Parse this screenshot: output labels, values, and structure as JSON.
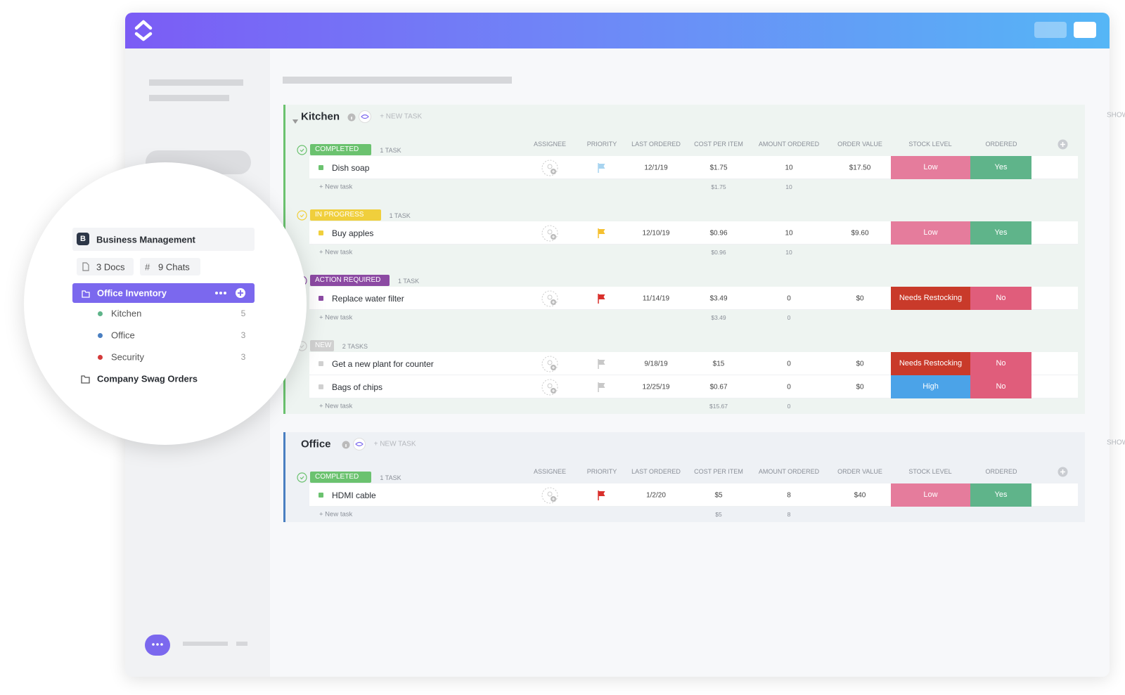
{
  "sidebar": {
    "workspace_initial": "B",
    "workspace": "Business Management",
    "docs": "3 Docs",
    "chats_icon": "#",
    "chats": "9 Chats",
    "folder": {
      "name": "Office Inventory",
      "lists": [
        {
          "name": "Kitchen",
          "count": 5,
          "color": "#5fb48a"
        },
        {
          "name": "Office",
          "count": 3,
          "color": "#4a7fc1"
        },
        {
          "name": "Security",
          "count": 3,
          "color": "#d43a3a"
        }
      ]
    },
    "other_folder": "Company Swag Orders"
  },
  "main": {
    "groups": [
      {
        "name": "Kitchen",
        "accent": "#6bc26f",
        "background": "#eef4f1",
        "new_task": "+ NEW TASK",
        "show_closed": "SHOW CLOSED",
        "columns": [
          "ASSIGNEE",
          "PRIORITY",
          "LAST ORDERED",
          "COST PER ITEM",
          "AMOUNT ORDERED",
          "ORDER VALUE",
          "STOCK LEVEL",
          "ORDERED"
        ],
        "statuses": [
          {
            "label": "COMPLETED",
            "color": "#6bc26f",
            "count": "1 TASK",
            "new_task": "+ New task",
            "total_cost": "$1.75",
            "total_amount": 10,
            "tasks": [
              {
                "name": "Dish soap",
                "priority_color": "#a8d4f0",
                "last_ordered": "12/1/19",
                "cost": "$1.75",
                "amount": 10,
                "order_value": "$17.50",
                "stock": "Low",
                "stock_color": "#e57c9c",
                "ordered": "Yes",
                "ordered_color": "#5fb48a"
              }
            ]
          },
          {
            "label": "IN PROGRESS",
            "color": "#f0cf3c",
            "count": "1 TASK",
            "new_task": "+ New task",
            "total_cost": "$0.96",
            "total_amount": 10,
            "tasks": [
              {
                "name": "Buy apples",
                "priority_color": "#f5c030",
                "last_ordered": "12/10/19",
                "cost": "$0.96",
                "amount": 10,
                "order_value": "$9.60",
                "stock": "Low",
                "stock_color": "#e57c9c",
                "ordered": "Yes",
                "ordered_color": "#5fb48a"
              }
            ]
          },
          {
            "label": "ACTION REQUIRED",
            "color": "#8c4aa3",
            "count": "1 TASK",
            "new_task": "+ New task",
            "total_cost": "$3.49",
            "total_amount": 0,
            "tasks": [
              {
                "name": "Replace water filter",
                "priority_color": "#d9302c",
                "last_ordered": "11/14/19",
                "cost": "$3.49",
                "amount": 0,
                "order_value": "$0",
                "stock": "Needs Restocking",
                "stock_color": "#c93a2a",
                "ordered": "No",
                "ordered_color": "#e05d7b"
              }
            ]
          },
          {
            "label": "NEW",
            "color": "#d0d0d0",
            "count": "2 TASKS",
            "new_task": "+ New task",
            "total_cost": "$15.67",
            "total_amount": 0,
            "tasks": [
              {
                "name": "Get a new plant for counter",
                "priority_color": "#c8c8c8",
                "last_ordered": "9/18/19",
                "cost": "$15",
                "amount": 0,
                "order_value": "$0",
                "stock": "Needs Restocking",
                "stock_color": "#c93a2a",
                "ordered": "No",
                "ordered_color": "#e05d7b"
              },
              {
                "name": "Bags of chips",
                "priority_color": "#c8c8c8",
                "last_ordered": "12/25/19",
                "cost": "$0.67",
                "amount": 0,
                "order_value": "$0",
                "stock": "High",
                "stock_color": "#4ba3e8",
                "ordered": "No",
                "ordered_color": "#e05d7b"
              }
            ]
          }
        ]
      },
      {
        "name": "Office",
        "accent": "#4a7fc1",
        "background": "#eef1f5",
        "new_task": "+ NEW TASK",
        "show_closed": "SHOW CLOSED",
        "columns": [
          "ASSIGNEE",
          "PRIORITY",
          "LAST ORDERED",
          "COST PER ITEM",
          "AMOUNT ORDERED",
          "ORDER VALUE",
          "STOCK LEVEL",
          "ORDERED"
        ],
        "statuses": [
          {
            "label": "COMPLETED",
            "color": "#6bc26f",
            "count": "1 TASK",
            "new_task": "+ New task",
            "total_cost": "$5",
            "total_amount": 8,
            "tasks": [
              {
                "name": "HDMI cable",
                "priority_color": "#d9302c",
                "last_ordered": "1/2/20",
                "cost": "$5",
                "amount": 8,
                "order_value": "$40",
                "stock": "Low",
                "stock_color": "#e57c9c",
                "ordered": "Yes",
                "ordered_color": "#5fb48a"
              }
            ]
          }
        ]
      }
    ]
  }
}
